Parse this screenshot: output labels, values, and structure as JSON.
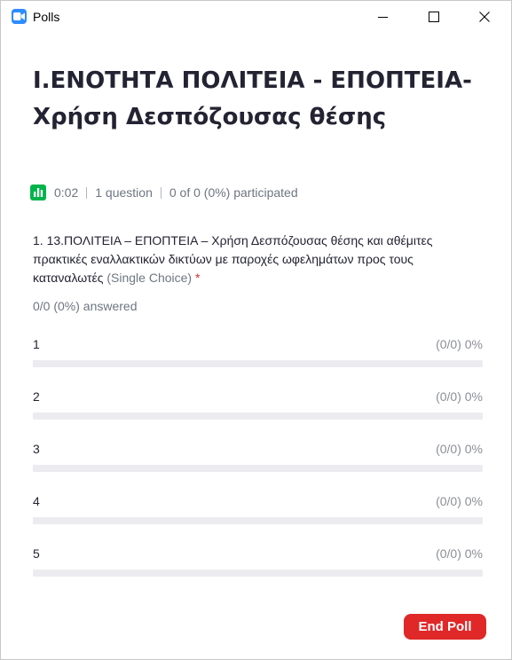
{
  "window": {
    "title": "Polls"
  },
  "poll": {
    "title": "I.ΕΝΟΤΗΤΑ ΠΟΛΙΤΕΙΑ - ΕΠΟΠΤΕΙΑ-Χρήση Δεσπόζουσας θέσης",
    "timer": "0:02",
    "question_count": "1 question",
    "participation": "0 of 0 (0%) participated"
  },
  "question": {
    "text": "1. 13.ΠΟΛΙΤΕΙΑ – ΕΠΟΠΤΕΙΑ – Χρήση Δεσπόζουσας θέσης και αθέμιτες πρακτικές εναλλακτικών δικτύων με παροχές ωφελημάτων προς τους  καταναλωτές",
    "type": "(Single Choice)",
    "required_marker": "*",
    "answered": "0/0 (0%) answered",
    "options": [
      {
        "label": "1",
        "result": "(0/0) 0%",
        "fraction": 0
      },
      {
        "label": "2",
        "result": "(0/0) 0%",
        "fraction": 0
      },
      {
        "label": "3",
        "result": "(0/0) 0%",
        "fraction": 0
      },
      {
        "label": "4",
        "result": "(0/0) 0%",
        "fraction": 0
      },
      {
        "label": "5",
        "result": "(0/0) 0%",
        "fraction": 0
      }
    ]
  },
  "actions": {
    "end_poll": "End Poll"
  },
  "icons": {
    "app": "zoom-camera-icon",
    "minimize": "minimize-icon",
    "maximize": "maximize-icon",
    "close": "close-icon",
    "stats": "bar-chart-icon"
  },
  "colors": {
    "accent": "#2d8cff",
    "danger": "#e02828",
    "success": "#00b34a",
    "track": "#ececf0"
  }
}
